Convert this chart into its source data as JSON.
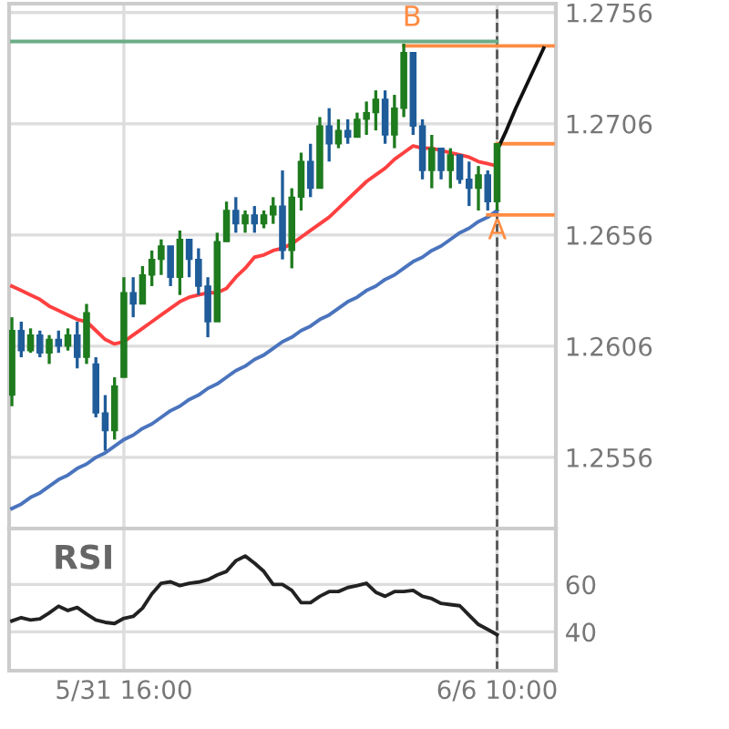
{
  "chart_data": [
    {
      "type": "candlestick",
      "categories": [
        null,
        null,
        null,
        null,
        null,
        null,
        null,
        null,
        null,
        null,
        null,
        null,
        "5/31 16:00",
        null,
        null,
        null,
        null,
        null,
        null,
        null,
        null,
        null,
        null,
        null,
        null,
        null,
        null,
        null,
        null,
        null,
        null,
        null,
        null,
        null,
        null,
        null,
        null,
        null,
        null,
        null,
        null,
        null,
        null,
        null,
        null,
        null,
        null,
        null,
        null,
        null,
        null,
        null,
        "6/6 10:00",
        null,
        null,
        null,
        null,
        null,
        null
      ],
      "ohlc": [
        [
          1.2584,
          1.2619,
          1.2579,
          1.2613
        ],
        [
          1.2613,
          1.2617,
          1.2601,
          1.2604
        ],
        [
          1.2604,
          1.2614,
          1.2603,
          1.2611
        ],
        [
          1.2611,
          1.2613,
          1.2601,
          1.2603
        ],
        [
          1.2603,
          1.2611,
          1.2598,
          1.2609
        ],
        [
          1.2609,
          1.2613,
          1.2603,
          1.2606
        ],
        [
          1.2606,
          1.2614,
          1.2604,
          1.2611
        ],
        [
          1.2611,
          1.2617,
          1.2596,
          1.2601
        ],
        [
          1.2601,
          1.2625,
          1.2598,
          1.2621
        ],
        [
          1.2598,
          1.2601,
          1.2574,
          1.2576
        ],
        [
          1.2576,
          1.2584,
          1.2559,
          1.2568
        ],
        [
          1.2568,
          1.2592,
          1.2564,
          1.2588
        ],
        [
          1.2592,
          1.2637,
          1.2592,
          1.263
        ],
        [
          1.263,
          1.2637,
          1.2619,
          1.2625
        ],
        [
          1.2625,
          1.2642,
          1.2625,
          1.2638
        ],
        [
          1.2638,
          1.2649,
          1.2633,
          1.2645
        ],
        [
          1.2645,
          1.2654,
          1.2638,
          1.2651
        ],
        [
          1.2651,
          1.2651,
          1.2633,
          1.2637
        ],
        [
          1.2637,
          1.2658,
          1.2629,
          1.2654
        ],
        [
          1.2654,
          1.2654,
          1.2637,
          1.2645
        ],
        [
          1.2645,
          1.265,
          1.2629,
          1.2633
        ],
        [
          1.2633,
          1.2637,
          1.261,
          1.2617
        ],
        [
          1.2617,
          1.2657,
          1.2617,
          1.2653
        ],
        [
          1.2653,
          1.2671,
          1.2653,
          1.2667
        ],
        [
          1.2667,
          1.2673,
          1.2657,
          1.2661
        ],
        [
          1.2661,
          1.2667,
          1.2657,
          1.2665
        ],
        [
          1.2665,
          1.2669,
          1.2657,
          1.2661
        ],
        [
          1.2661,
          1.2667,
          1.2659,
          1.2665
        ],
        [
          1.2665,
          1.2673,
          1.2661,
          1.2669
        ],
        [
          1.2669,
          1.2685,
          1.2645,
          1.2649
        ],
        [
          1.2649,
          1.2677,
          1.2641,
          1.2673
        ],
        [
          1.2673,
          1.2693,
          1.2667,
          1.2689
        ],
        [
          1.2689,
          1.2697,
          1.2673,
          1.2677
        ],
        [
          1.2677,
          1.2709,
          1.2677,
          1.2705
        ],
        [
          1.2705,
          1.2713,
          1.2689,
          1.2697
        ],
        [
          1.2697,
          1.2708,
          1.2695,
          1.2703
        ],
        [
          1.2703,
          1.2708,
          1.2697,
          1.27
        ],
        [
          1.27,
          1.2711,
          1.27,
          1.2708
        ],
        [
          1.2708,
          1.2716,
          1.2701,
          1.2711
        ],
        [
          1.2711,
          1.2721,
          1.2703,
          1.2717
        ],
        [
          1.2717,
          1.2721,
          1.2697,
          1.2701
        ],
        [
          1.2701,
          1.2719,
          1.2695,
          1.2713
        ],
        [
          1.2713,
          1.2742,
          1.2709,
          1.2738
        ],
        [
          1.2738,
          1.2738,
          1.2701,
          1.2705
        ],
        [
          1.2705,
          1.2708,
          1.2681,
          1.2685
        ],
        [
          1.2685,
          1.2701,
          1.2677,
          1.2695
        ],
        [
          1.2695,
          1.2695,
          1.2681,
          1.2685
        ],
        [
          1.2685,
          1.2695,
          1.2677,
          1.2692
        ],
        [
          1.2692,
          1.2692,
          1.2679,
          1.2681
        ],
        [
          1.2681,
          1.2689,
          1.2669,
          1.2677
        ],
        [
          1.2677,
          1.2687,
          1.2667,
          1.2683
        ],
        [
          1.2683,
          1.2685,
          1.2667,
          1.2671
        ],
        [
          1.2671,
          1.2697,
          1.2667,
          1.2697
        ],
        null,
        null,
        null,
        null,
        null,
        null
      ],
      "colors": [
        "#1e7b1e",
        "#1f5c99",
        "#1e7b1e",
        "#1f5c99",
        "#1e7b1e",
        "#1f5c99",
        "#1e7b1e",
        "#1f5c99",
        "#1e7b1e",
        "#1f5c99",
        "#1f5c99",
        "#1e7b1e",
        "#1e7b1e",
        "#1f5c99",
        "#1e7b1e",
        "#1e7b1e",
        "#1e7b1e",
        "#1f5c99",
        "#1e7b1e",
        "#1f5c99",
        "#1f5c99",
        "#1f5c99",
        "#1e7b1e",
        "#1e7b1e",
        "#1f5c99",
        "#1e7b1e",
        "#1f5c99",
        "#1e7b1e",
        "#1e7b1e",
        "#1f5c99",
        "#1e7b1e",
        "#1e7b1e",
        "#1f5c99",
        "#1e7b1e",
        "#1f5c99",
        "#1e7b1e",
        "#1f5c99",
        "#1e7b1e",
        "#1e7b1e",
        "#1e7b1e",
        "#1f5c99",
        "#1e7b1e",
        "#1e7b1e",
        "#1f5c99",
        "#1f5c99",
        "#1e7b1e",
        "#1f5c99",
        "#1e7b1e",
        "#1f5c99",
        "#1f5c99",
        "#1e7b1e",
        "#1f5c99",
        "#1e7b1e",
        null,
        null,
        null,
        null,
        null,
        null
      ],
      "series": [
        {
          "type": "line",
          "color": "#4a74bd",
          "values": [
            1.2533,
            1.2535,
            1.2538,
            1.254,
            1.2543,
            1.2546,
            1.2548,
            1.2551,
            1.2553,
            1.2556,
            1.2558,
            1.2561,
            1.2564,
            1.2566,
            1.2569,
            1.2571,
            1.2574,
            1.2577,
            1.2579,
            1.2582,
            1.2584,
            1.2587,
            1.2589,
            1.2592,
            1.2595,
            1.2597,
            1.26,
            1.2602,
            1.2605,
            1.2608,
            1.261,
            1.2613,
            1.2615,
            1.2618,
            1.262,
            1.2623,
            1.2626,
            1.2628,
            1.2631,
            1.2633,
            1.2636,
            1.2638,
            1.2641,
            1.2644,
            1.2646,
            1.2649,
            1.2651,
            1.2654,
            1.2657,
            1.2659,
            1.2662,
            1.2664,
            1.2667,
            null,
            null,
            null,
            null,
            null,
            null
          ]
        },
        {
          "type": "line",
          "color": "#6aac86",
          "values": [
            1.2743,
            1.2743,
            1.2743,
            1.2743,
            1.2743,
            1.2743,
            1.2743,
            1.2743,
            1.2743,
            1.2743,
            1.2743,
            1.2743,
            1.2743,
            1.2743,
            1.2743,
            1.2743,
            1.2743,
            1.2743,
            1.2743,
            1.2743,
            1.2743,
            1.2743,
            1.2743,
            1.2743,
            1.2743,
            1.2743,
            1.2743,
            1.2743,
            1.2743,
            1.2743,
            1.2743,
            1.2743,
            1.2743,
            1.2743,
            1.2743,
            1.2743,
            1.2743,
            1.2743,
            1.2743,
            1.2743,
            1.2743,
            1.2743,
            1.2743,
            1.2743,
            1.2743,
            1.2743,
            1.2743,
            1.2743,
            1.2743,
            1.2743,
            1.2743,
            1.2743,
            1.2743,
            null,
            null,
            null,
            null,
            null,
            null
          ]
        },
        {
          "type": "line",
          "color": "#ff4040",
          "values": [
            1.2633,
            1.2631,
            1.2629,
            1.2627,
            1.2624,
            1.2622,
            1.262,
            1.2618,
            1.2617,
            1.2613,
            1.2609,
            1.2607,
            1.2608,
            1.2611,
            1.2614,
            1.2617,
            1.262,
            1.2623,
            1.2626,
            1.2628,
            1.2629,
            1.263,
            1.263,
            1.2632,
            1.2637,
            1.2641,
            1.2646,
            1.2647,
            1.2649,
            1.265,
            1.2652,
            1.2655,
            1.2658,
            1.2661,
            1.2664,
            1.2668,
            1.2672,
            1.2676,
            1.268,
            1.2683,
            1.2686,
            1.269,
            1.2693,
            1.2696,
            1.2695,
            1.2695,
            1.2694,
            1.2693,
            1.2692,
            1.2691,
            1.2689,
            1.2688,
            1.2687,
            null,
            null,
            null,
            null,
            null,
            null
          ]
        },
        {
          "type": "line",
          "color": "#ff8c42",
          "values": [
            null,
            null,
            null,
            null,
            null,
            null,
            null,
            null,
            null,
            null,
            null,
            null,
            null,
            null,
            null,
            null,
            null,
            null,
            null,
            null,
            null,
            null,
            null,
            null,
            null,
            null,
            null,
            null,
            null,
            null,
            null,
            null,
            null,
            null,
            null,
            null,
            null,
            null,
            null,
            null,
            null,
            null,
            1.2741,
            1.2741,
            1.2741,
            1.2741,
            1.2741,
            1.2741,
            1.2741,
            1.2741,
            1.2741,
            1.2741,
            1.2741,
            1.2741,
            1.2741,
            1.2741,
            1.2741,
            1.2741,
            1.2741
          ]
        },
        {
          "type": "line",
          "color": "#ff8c42",
          "values": [
            null,
            null,
            null,
            null,
            null,
            null,
            null,
            null,
            null,
            null,
            null,
            null,
            null,
            null,
            null,
            null,
            null,
            null,
            null,
            null,
            null,
            null,
            null,
            null,
            null,
            null,
            null,
            null,
            null,
            null,
            null,
            null,
            null,
            null,
            null,
            null,
            null,
            null,
            null,
            null,
            null,
            null,
            null,
            null,
            null,
            null,
            null,
            null,
            null,
            null,
            null,
            null,
            1.2697,
            1.2697,
            1.2697,
            1.2697,
            1.2697,
            1.2697,
            1.2697
          ]
        },
        {
          "type": "line",
          "color": "#ff8c42",
          "values": [
            null,
            null,
            null,
            null,
            null,
            null,
            null,
            null,
            null,
            null,
            null,
            null,
            null,
            null,
            null,
            null,
            null,
            null,
            null,
            null,
            null,
            null,
            null,
            null,
            null,
            null,
            null,
            null,
            null,
            null,
            null,
            null,
            null,
            null,
            null,
            null,
            null,
            null,
            null,
            null,
            null,
            null,
            null,
            null,
            null,
            null,
            null,
            null,
            null,
            null,
            null,
            1.2665,
            1.2665,
            1.2665,
            1.2665,
            1.2665,
            1.2665,
            1.2665,
            1.2665
          ]
        },
        {
          "type": "line",
          "color": "#111111",
          "values": [
            null,
            null,
            null,
            null,
            null,
            null,
            null,
            null,
            null,
            null,
            null,
            null,
            null,
            null,
            null,
            null,
            null,
            null,
            null,
            null,
            null,
            null,
            null,
            null,
            null,
            null,
            null,
            null,
            null,
            null,
            null,
            null,
            null,
            null,
            null,
            null,
            null,
            null,
            null,
            null,
            null,
            null,
            null,
            null,
            null,
            null,
            null,
            null,
            null,
            null,
            null,
            null,
            1.2694,
            1.2703,
            1.2713,
            1.2722,
            1.2731,
            1.274,
            null
          ]
        }
      ],
      "ylim": [
        1.2524,
        1.276
      ],
      "yticks": [
        1.2556,
        1.2606,
        1.2656,
        1.2706,
        1.2756
      ],
      "tick_labels": "y",
      "grid": true,
      "ref_lines": [
        {
          "axis": "x",
          "value": "6/6 10:00",
          "color": "#555555",
          "line_style": "dashed"
        }
      ],
      "annotations": [
        "B",
        "A"
      ]
    },
    {
      "type": "line",
      "color": "#222222",
      "categories": [
        null,
        null,
        null,
        null,
        null,
        null,
        null,
        null,
        null,
        null,
        null,
        null,
        "5/31 16:00",
        null,
        null,
        null,
        null,
        null,
        null,
        null,
        null,
        null,
        null,
        null,
        null,
        null,
        null,
        null,
        null,
        null,
        null,
        null,
        null,
        null,
        null,
        null,
        null,
        null,
        null,
        null,
        null,
        null,
        null,
        null,
        null,
        null,
        null,
        null,
        null,
        null,
        null,
        null,
        "6/6 10:00",
        null,
        null,
        null,
        null,
        null,
        null
      ],
      "values": [
        44.6,
        46,
        45,
        45.5,
        48,
        50.8,
        49,
        50.3,
        47.5,
        45,
        44,
        43.5,
        45.7,
        46.5,
        50,
        56,
        60.5,
        61.1,
        59.5,
        60.5,
        61,
        62,
        64,
        65.5,
        70,
        72,
        69,
        65.5,
        60,
        60,
        57.5,
        52.3,
        52.3,
        55,
        57,
        57,
        58.7,
        59.5,
        60.5,
        56.7,
        55,
        57,
        57,
        57.5,
        55,
        54,
        52,
        51.5,
        51,
        47,
        43.1,
        41,
        38.8,
        null,
        null,
        null,
        null,
        null,
        null
      ],
      "ylim": [
        23.6,
        83.6
      ],
      "yticks": [
        40,
        60
      ],
      "grid": true,
      "ref_lines": [
        {
          "axis": "x",
          "value": "6/6 10:00",
          "color": "#555555",
          "line_style": "dashed"
        }
      ],
      "annotations": [
        "RSI"
      ]
    }
  ]
}
